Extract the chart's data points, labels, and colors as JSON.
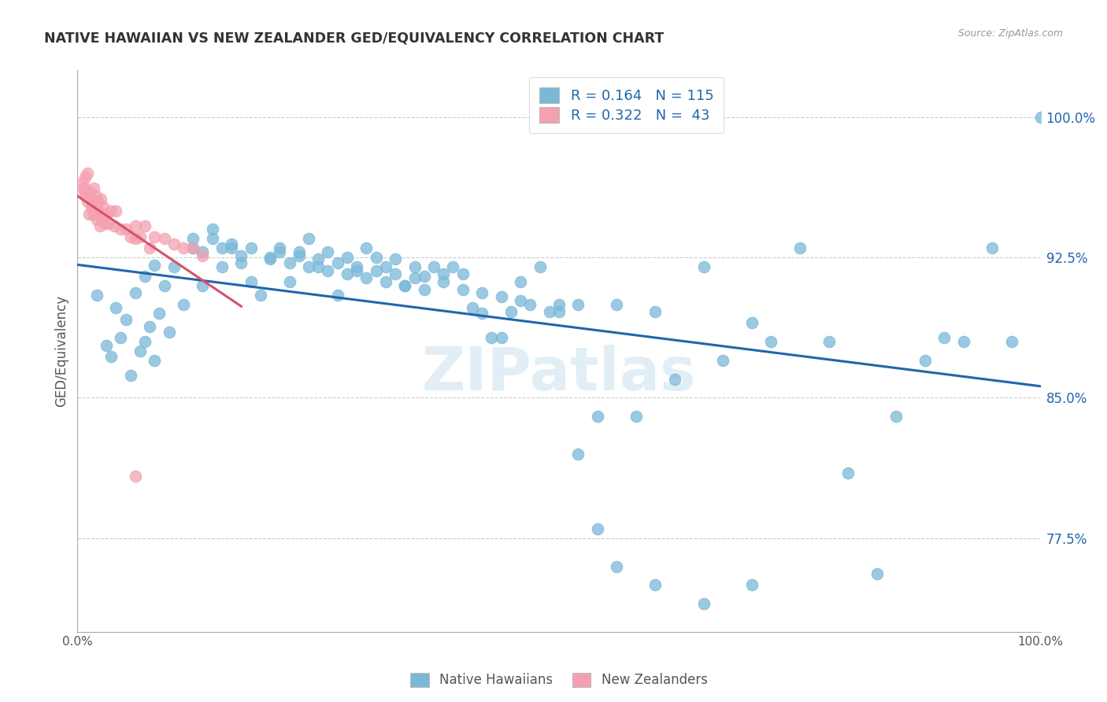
{
  "title": "NATIVE HAWAIIAN VS NEW ZEALANDER GED/EQUIVALENCY CORRELATION CHART",
  "source": "Source: ZipAtlas.com",
  "ylabel": "GED/Equivalency",
  "ytick_labels": [
    "77.5%",
    "85.0%",
    "92.5%",
    "100.0%"
  ],
  "ytick_values": [
    0.775,
    0.85,
    0.925,
    1.0
  ],
  "xlim": [
    0.0,
    1.0
  ],
  "ylim": [
    0.725,
    1.025
  ],
  "blue_color": "#7ab8d9",
  "pink_color": "#f4a0b0",
  "blue_line_color": "#2166ac",
  "pink_line_color": "#d4526a",
  "watermark_text": "ZIPatlas",
  "blue_R": 0.164,
  "blue_N": 115,
  "pink_R": 0.322,
  "pink_N": 43,
  "legend_blue_label": "R = 0.164   N = 115",
  "legend_pink_label": "R = 0.322   N =  43",
  "bottom_legend_blue": "Native Hawaiians",
  "bottom_legend_pink": "New Zealanders",
  "blue_scatter_x": [
    0.02,
    0.03,
    0.035,
    0.04,
    0.045,
    0.05,
    0.055,
    0.06,
    0.065,
    0.07,
    0.075,
    0.08,
    0.085,
    0.09,
    0.095,
    0.1,
    0.11,
    0.12,
    0.13,
    0.14,
    0.15,
    0.16,
    0.17,
    0.18,
    0.19,
    0.2,
    0.21,
    0.22,
    0.23,
    0.24,
    0.25,
    0.26,
    0.27,
    0.28,
    0.29,
    0.3,
    0.31,
    0.32,
    0.33,
    0.34,
    0.35,
    0.36,
    0.37,
    0.38,
    0.39,
    0.4,
    0.41,
    0.42,
    0.43,
    0.44,
    0.45,
    0.46,
    0.47,
    0.48,
    0.49,
    0.5,
    0.52,
    0.54,
    0.56,
    0.58,
    0.6,
    0.62,
    0.65,
    0.67,
    0.7,
    0.72,
    0.75,
    0.78,
    0.8,
    0.83,
    0.85,
    0.88,
    0.9,
    0.92,
    0.95,
    0.97,
    1.0,
    0.07,
    0.08,
    0.12,
    0.13,
    0.14,
    0.15,
    0.16,
    0.17,
    0.18,
    0.2,
    0.21,
    0.22,
    0.23,
    0.24,
    0.25,
    0.26,
    0.27,
    0.28,
    0.29,
    0.3,
    0.31,
    0.32,
    0.33,
    0.34,
    0.35,
    0.36,
    0.38,
    0.4,
    0.42,
    0.44,
    0.46,
    0.5,
    0.52,
    0.54,
    0.56,
    0.6,
    0.65,
    0.7
  ],
  "blue_scatter_y": [
    0.905,
    0.878,
    0.872,
    0.898,
    0.882,
    0.892,
    0.862,
    0.906,
    0.875,
    0.915,
    0.888,
    0.921,
    0.895,
    0.91,
    0.885,
    0.92,
    0.9,
    0.935,
    0.91,
    0.94,
    0.92,
    0.93,
    0.922,
    0.912,
    0.905,
    0.925,
    0.93,
    0.912,
    0.928,
    0.935,
    0.92,
    0.928,
    0.905,
    0.925,
    0.918,
    0.93,
    0.925,
    0.92,
    0.924,
    0.91,
    0.92,
    0.915,
    0.92,
    0.916,
    0.92,
    0.916,
    0.898,
    0.895,
    0.882,
    0.882,
    0.896,
    0.912,
    0.9,
    0.92,
    0.896,
    0.896,
    0.9,
    0.84,
    0.9,
    0.84,
    0.896,
    0.86,
    0.92,
    0.87,
    0.89,
    0.88,
    0.93,
    0.88,
    0.81,
    0.756,
    0.84,
    0.87,
    0.882,
    0.88,
    0.93,
    0.88,
    1.0,
    0.88,
    0.87,
    0.93,
    0.928,
    0.935,
    0.93,
    0.932,
    0.926,
    0.93,
    0.924,
    0.928,
    0.922,
    0.926,
    0.92,
    0.924,
    0.918,
    0.922,
    0.916,
    0.92,
    0.914,
    0.918,
    0.912,
    0.916,
    0.91,
    0.914,
    0.908,
    0.912,
    0.908,
    0.906,
    0.904,
    0.902,
    0.9,
    0.82,
    0.78,
    0.76,
    0.75,
    0.74,
    0.75
  ],
  "pink_scatter_x": [
    0.005,
    0.006,
    0.007,
    0.008,
    0.009,
    0.01,
    0.01,
    0.012,
    0.013,
    0.014,
    0.015,
    0.016,
    0.017,
    0.018,
    0.019,
    0.02,
    0.021,
    0.022,
    0.023,
    0.024,
    0.025,
    0.027,
    0.028,
    0.03,
    0.032,
    0.035,
    0.038,
    0.04,
    0.045,
    0.05,
    0.055,
    0.06,
    0.065,
    0.07,
    0.075,
    0.08,
    0.09,
    0.1,
    0.11,
    0.12,
    0.13,
    0.06,
    0.06
  ],
  "pink_scatter_y": [
    0.965,
    0.962,
    0.96,
    0.968,
    0.958,
    0.955,
    0.97,
    0.948,
    0.96,
    0.952,
    0.954,
    0.948,
    0.962,
    0.95,
    0.958,
    0.945,
    0.955,
    0.95,
    0.942,
    0.956,
    0.946,
    0.952,
    0.943,
    0.948,
    0.943,
    0.95,
    0.942,
    0.95,
    0.94,
    0.94,
    0.936,
    0.942,
    0.936,
    0.942,
    0.93,
    0.936,
    0.935,
    0.932,
    0.93,
    0.93,
    0.926,
    0.808,
    0.935
  ]
}
